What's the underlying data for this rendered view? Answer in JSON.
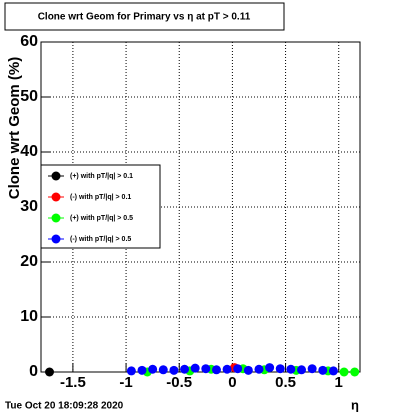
{
  "chart_data": {
    "type": "scatter",
    "title": "Clone wrt Geom for Primary vs  η at pT > 0.11",
    "y_label": "Clone wrt Geom (%)",
    "x_label": "η",
    "footer": "Tue Oct 20 18:09:28 2020",
    "xlim": [
      -1.8,
      1.2
    ],
    "xticks": [
      -1.5,
      -1,
      -0.5,
      0,
      0.5,
      1
    ],
    "ylim": [
      0,
      60
    ],
    "yticks": [
      0,
      10,
      20,
      30,
      40,
      50,
      60
    ],
    "grid": true,
    "legend": "left",
    "series": [
      {
        "name": "(+) with pT/|q| > 0.1",
        "color": "#000000",
        "x": [
          -1.72
        ],
        "values": [
          0
        ]
      },
      {
        "name": "(-) with pT/|q| > 0.1",
        "color": "#ff0000",
        "x": [
          0.02
        ],
        "values": [
          0.8
        ]
      },
      {
        "name": "(+) with pT/|q| > 0.5",
        "color": "#00ff00",
        "x": [
          -0.8,
          -0.4,
          -0.2,
          0.1,
          0.3,
          0.6,
          0.9,
          1.05,
          1.15
        ],
        "values": [
          0,
          0.2,
          0.5,
          0.6,
          0.4,
          0.3,
          0.2,
          0,
          0
        ]
      },
      {
        "name": "(-) with pT/|q| > 0.5",
        "color": "#0000ff",
        "x": [
          -0.95,
          -0.85,
          -0.75,
          -0.65,
          -0.55,
          -0.45,
          -0.35,
          -0.25,
          -0.15,
          -0.05,
          0.05,
          0.15,
          0.25,
          0.35,
          0.45,
          0.55,
          0.65,
          0.75,
          0.85,
          0.95
        ],
        "values": [
          0.2,
          0.3,
          0.5,
          0.4,
          0.3,
          0.5,
          0.7,
          0.6,
          0.4,
          0.5,
          0.6,
          0.3,
          0.5,
          0.8,
          0.6,
          0.5,
          0.4,
          0.6,
          0.3,
          0.2
        ]
      }
    ]
  }
}
